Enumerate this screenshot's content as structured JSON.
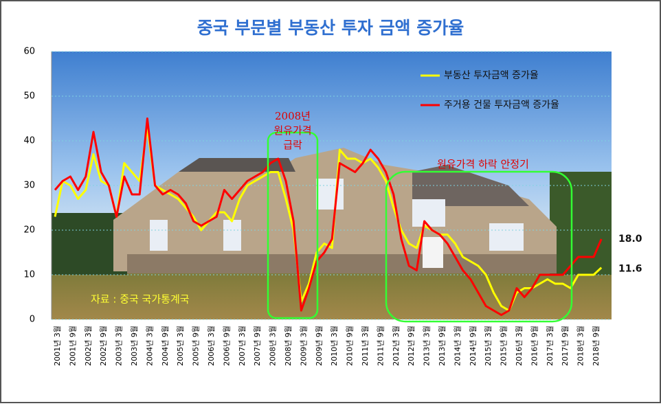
{
  "chart_data": {
    "type": "line",
    "title": "중국 부문별 부동산 투자 금액 증가율",
    "annotations": [
      "2008년",
      "원유가격",
      "급락",
      "원유가격 하락 안정기",
      "자료 : 중국 국가통계국"
    ],
    "categories": [
      "2001년 3월",
      null,
      "2001년 9월",
      null,
      "2002년 3월",
      null,
      "2002년 9월",
      null,
      "2003년 3월",
      null,
      "2003년 9월",
      null,
      "2004년 3월",
      null,
      "2004년 9월",
      null,
      "2005년 3월",
      null,
      "2005년 9월",
      null,
      "2006년 3월",
      null,
      "2006년 9월",
      null,
      "2007년 3월",
      null,
      "2007년 9월",
      null,
      "2008년 3월",
      null,
      "2008년 9월",
      null,
      "2009년 3월",
      null,
      "2009년 9월",
      null,
      "2010년 3월",
      null,
      "2010년 9월",
      null,
      "2011년 3월",
      null,
      "2011년 9월",
      null,
      "2012년 3월",
      null,
      "2012년 9월",
      null,
      "2013년 3월",
      null,
      "2013년 9월",
      null,
      "2014년 3월",
      null,
      "2014년 9월",
      null,
      "2015년 3월",
      null,
      "2015년 9월",
      null,
      "2016년 3월",
      null,
      "2016년 9월",
      null,
      "2017년 3월",
      null,
      "2017년 9월",
      null,
      "2018년 3월",
      null,
      "2018년 9월",
      null
    ],
    "series": [
      {
        "name": "부동산 투자금액 증가율",
        "color": "#ffff00",
        "values": [
          23,
          31,
          30,
          27,
          29,
          37,
          31,
          30,
          23,
          35,
          33,
          31,
          43,
          30,
          29,
          28,
          27,
          25,
          23,
          20,
          22,
          24,
          24,
          22,
          27,
          30,
          31,
          32,
          33,
          33,
          27,
          20,
          4,
          8,
          15,
          17,
          16,
          38,
          36,
          36,
          35,
          36,
          34,
          31,
          25,
          20,
          17,
          16,
          21,
          20,
          19,
          19,
          17,
          14,
          13,
          12,
          10,
          6,
          3,
          2,
          6,
          7,
          7,
          8,
          9,
          8,
          8,
          7,
          10,
          10,
          10,
          11.6
        ],
        "value_labels": [
          null,
          null,
          null,
          null,
          null,
          null,
          null,
          null,
          null,
          null,
          null,
          null,
          null,
          null,
          null,
          null,
          null,
          null,
          null,
          null,
          null,
          null,
          null,
          null,
          null,
          null,
          null,
          null,
          null,
          null,
          null,
          null,
          null,
          null,
          null,
          null,
          null,
          null,
          null,
          null,
          null,
          null,
          null,
          null,
          null,
          null,
          null,
          null,
          null,
          null,
          null,
          null,
          null,
          null,
          null,
          null,
          null,
          null,
          null,
          null,
          null,
          null,
          null,
          null,
          null,
          null,
          null,
          null,
          null,
          null,
          null,
          "11.6"
        ]
      },
      {
        "name": "주거용 건물 투자금액 증가율",
        "color": "#ff0000",
        "values": [
          29,
          31,
          32,
          29,
          32,
          42,
          33,
          30,
          23,
          32,
          28,
          28,
          45,
          30,
          28,
          29,
          28,
          26,
          22,
          21,
          22,
          23,
          29,
          27,
          29,
          31,
          32,
          33,
          35,
          36,
          31,
          22,
          2,
          7,
          13,
          15,
          18,
          35,
          34,
          33,
          35,
          38,
          36,
          33,
          28,
          18,
          12,
          11,
          22,
          20,
          19,
          17,
          14,
          11,
          9,
          6,
          3,
          2,
          1,
          2,
          7,
          5,
          7,
          10,
          10,
          10,
          10,
          12,
          14,
          14,
          14,
          18
        ],
        "value_labels": [
          null,
          null,
          null,
          null,
          null,
          null,
          null,
          null,
          null,
          null,
          null,
          null,
          null,
          null,
          null,
          null,
          null,
          null,
          null,
          null,
          null,
          null,
          null,
          null,
          null,
          null,
          null,
          null,
          null,
          null,
          null,
          null,
          null,
          null,
          null,
          null,
          null,
          null,
          null,
          null,
          null,
          null,
          null,
          null,
          null,
          null,
          null,
          null,
          null,
          null,
          null,
          null,
          null,
          null,
          null,
          null,
          null,
          null,
          null,
          null,
          null,
          null,
          null,
          null,
          null,
          null,
          null,
          null,
          null,
          null,
          null,
          "18.0"
        ]
      }
    ],
    "ylim": [
      0,
      60
    ],
    "yticks": [
      0,
      10,
      20,
      30,
      40,
      50,
      60
    ],
    "grid": true,
    "legend": "top-right"
  }
}
